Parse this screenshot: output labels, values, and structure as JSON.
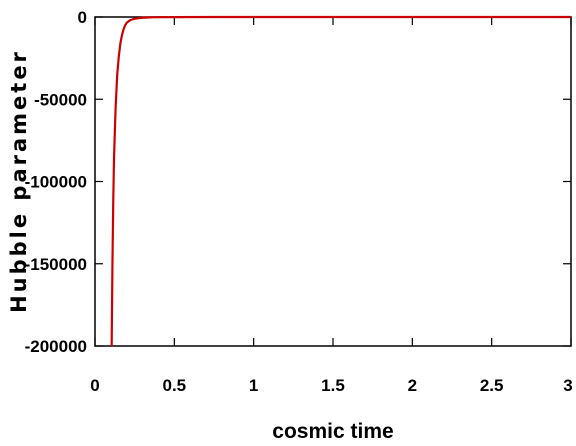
{
  "chart_data": {
    "type": "line",
    "xlabel": "cosmic time",
    "ylabel": "Hubble parameter",
    "xlim": [
      0,
      3
    ],
    "ylim": [
      -200000,
      0
    ],
    "xticks": [
      0,
      0.5,
      1,
      1.5,
      2,
      2.5,
      3
    ],
    "xtick_labels": [
      "0",
      "0.5",
      "1",
      "1.5",
      "2",
      "2.5",
      "3"
    ],
    "yticks": [
      0,
      -50000,
      -100000,
      -150000,
      -200000
    ],
    "ytick_labels": [
      "0",
      "-50000",
      "-100000",
      "-150000",
      "-200000"
    ],
    "grid": false,
    "series": [
      {
        "color": "#cc0000",
        "x": [
          0.105,
          0.11,
          0.115,
          0.12,
          0.13,
          0.14,
          0.15,
          0.16,
          0.17,
          0.18,
          0.19,
          0.2,
          0.22,
          0.24,
          0.26,
          0.28,
          0.3,
          0.33,
          0.36,
          0.4,
          0.5,
          0.75,
          1,
          1.5,
          2,
          2.5,
          3
        ],
        "y": [
          -200000,
          -150000,
          -112000,
          -85000,
          -55000,
          -35000,
          -24000,
          -16000,
          -11000,
          -7500,
          -5000,
          -3500,
          -2000,
          -1300,
          -900,
          -600,
          -450,
          -300,
          -200,
          -120,
          -60,
          -20,
          -10,
          -5,
          -2,
          -1,
          0
        ]
      }
    ]
  }
}
